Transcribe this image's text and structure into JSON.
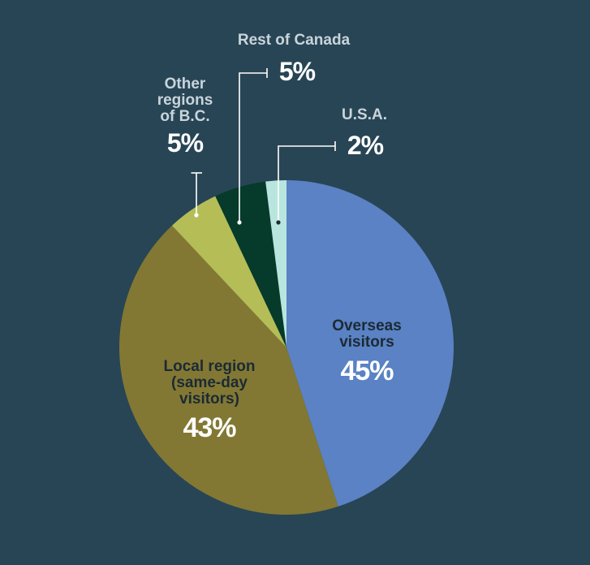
{
  "chart_data": {
    "type": "pie",
    "title": "",
    "slices": [
      {
        "key": "overseas",
        "label": "Overseas visitors",
        "value": 45,
        "value_label": "45%",
        "color": "#5a82c4"
      },
      {
        "key": "local",
        "label": "Local region (same-day visitors)",
        "value": 43,
        "value_label": "43%",
        "color": "#827833"
      },
      {
        "key": "other_bc",
        "label": "Other regions of B.C.",
        "value": 5,
        "value_label": "5%",
        "color": "#b5bd56"
      },
      {
        "key": "rest_canada",
        "label": "Rest of Canada",
        "value": 5,
        "value_label": "5%",
        "color": "#063a2a"
      },
      {
        "key": "usa",
        "label": "U.S.A.",
        "value": 2,
        "value_label": "2%",
        "color": "#b8e6de"
      }
    ],
    "start_angle": "12 o'clock",
    "direction": "clockwise",
    "background": "#284555"
  },
  "labels": {
    "overseas_line1": "Overseas",
    "overseas_line2": "visitors",
    "local_line1": "Local region",
    "local_line2": "(same-day",
    "local_line3": "visitors)",
    "other_bc_line1": "Other",
    "other_bc_line2": "regions",
    "other_bc_line3": "of B.C.",
    "rest_canada": "Rest of Canada",
    "usa": "U.S.A."
  }
}
